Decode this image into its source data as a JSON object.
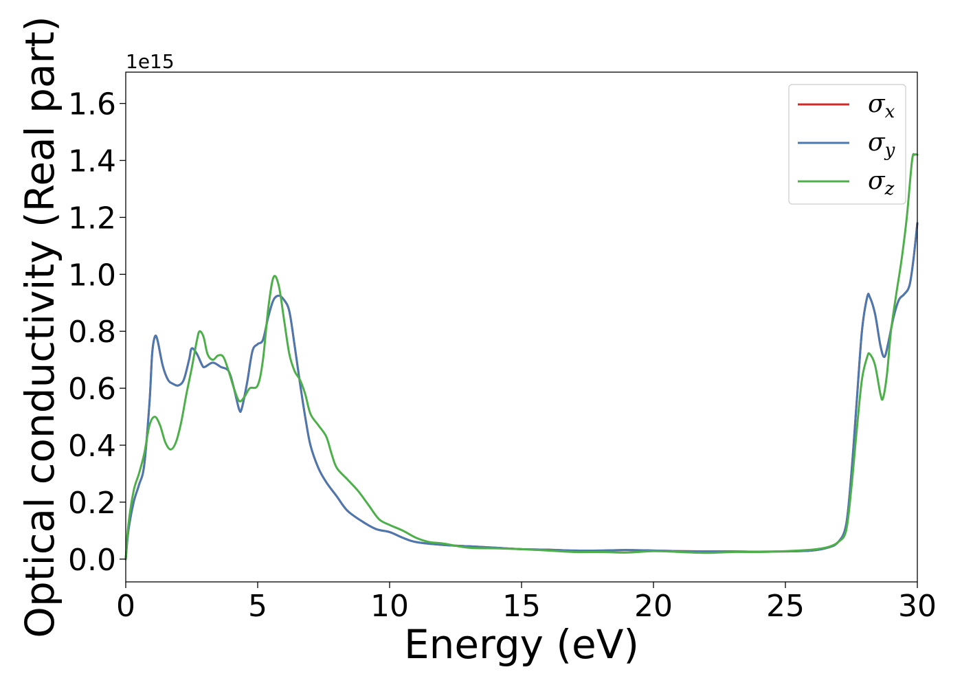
{
  "chart_data": {
    "type": "line",
    "title": "",
    "xlabel": "Energy (eV)",
    "ylabel": "Optical conductivity (Real part)",
    "y_offset_text": "1e15",
    "xlim": [
      0,
      30
    ],
    "ylim": [
      -0.08,
      1.71
    ],
    "x_ticks": [
      0,
      5,
      10,
      15,
      20,
      25,
      30
    ],
    "x_tick_labels": [
      "0",
      "5",
      "10",
      "15",
      "20",
      "25",
      "30"
    ],
    "y_ticks": [
      0.0,
      0.2,
      0.4,
      0.6,
      0.8,
      1.0,
      1.2,
      1.4,
      1.6
    ],
    "y_tick_labels": [
      "0.0",
      "0.2",
      "0.4",
      "0.6",
      "0.8",
      "1.0",
      "1.2",
      "1.4",
      "1.6"
    ],
    "grid": false,
    "legend_position": "top-right",
    "series": [
      {
        "name": "σx",
        "legend_symbol": "σ",
        "legend_subscript": "x",
        "color": "#d62728",
        "points": [
          [
            0,
            0.0
          ],
          [
            0.1,
            0.1
          ],
          [
            0.3,
            0.2
          ],
          [
            0.5,
            0.26
          ],
          [
            0.7,
            0.33
          ],
          [
            0.9,
            0.55
          ],
          [
            1.0,
            0.72
          ],
          [
            1.1,
            0.78
          ],
          [
            1.2,
            0.77
          ],
          [
            1.4,
            0.68
          ],
          [
            1.6,
            0.63
          ],
          [
            1.8,
            0.615
          ],
          [
            2.0,
            0.61
          ],
          [
            2.2,
            0.63
          ],
          [
            2.4,
            0.7
          ],
          [
            2.5,
            0.74
          ],
          [
            2.7,
            0.72
          ],
          [
            2.9,
            0.68
          ],
          [
            3.0,
            0.675
          ],
          [
            3.3,
            0.69
          ],
          [
            3.6,
            0.675
          ],
          [
            3.9,
            0.66
          ],
          [
            4.1,
            0.6
          ],
          [
            4.3,
            0.525
          ],
          [
            4.4,
            0.53
          ],
          [
            4.6,
            0.62
          ],
          [
            4.8,
            0.73
          ],
          [
            5.0,
            0.755
          ],
          [
            5.2,
            0.77
          ],
          [
            5.4,
            0.85
          ],
          [
            5.6,
            0.91
          ],
          [
            5.8,
            0.925
          ],
          [
            6.0,
            0.91
          ],
          [
            6.2,
            0.87
          ],
          [
            6.4,
            0.75
          ],
          [
            6.6,
            0.62
          ],
          [
            6.8,
            0.5
          ],
          [
            7.0,
            0.4
          ],
          [
            7.3,
            0.32
          ],
          [
            7.6,
            0.27
          ],
          [
            8.0,
            0.22
          ],
          [
            8.4,
            0.17
          ],
          [
            9.0,
            0.13
          ],
          [
            9.5,
            0.105
          ],
          [
            10.0,
            0.095
          ],
          [
            10.5,
            0.075
          ],
          [
            11.0,
            0.06
          ],
          [
            12.0,
            0.05
          ],
          [
            13.0,
            0.045
          ],
          [
            14.0,
            0.04
          ],
          [
            15.0,
            0.035
          ],
          [
            16.0,
            0.033
          ],
          [
            17.0,
            0.03
          ],
          [
            18.0,
            0.03
          ],
          [
            19.0,
            0.032
          ],
          [
            20.0,
            0.03
          ],
          [
            21.0,
            0.028
          ],
          [
            22.0,
            0.027
          ],
          [
            23.0,
            0.027
          ],
          [
            24.0,
            0.026
          ],
          [
            25.0,
            0.027
          ],
          [
            26.0,
            0.03
          ],
          [
            26.6,
            0.04
          ],
          [
            27.0,
            0.06
          ],
          [
            27.3,
            0.12
          ],
          [
            27.5,
            0.3
          ],
          [
            27.7,
            0.55
          ],
          [
            27.9,
            0.8
          ],
          [
            28.1,
            0.92
          ],
          [
            28.2,
            0.92
          ],
          [
            28.4,
            0.86
          ],
          [
            28.6,
            0.75
          ],
          [
            28.75,
            0.71
          ],
          [
            28.9,
            0.76
          ],
          [
            29.1,
            0.85
          ],
          [
            29.3,
            0.91
          ],
          [
            29.5,
            0.93
          ],
          [
            29.7,
            0.96
          ],
          [
            29.85,
            1.05
          ],
          [
            30.0,
            1.18
          ]
        ]
      },
      {
        "name": "σy",
        "legend_symbol": "σ",
        "legend_subscript": "y",
        "color": "#4a78b0",
        "points": [
          [
            0,
            0.0
          ],
          [
            0.1,
            0.1
          ],
          [
            0.3,
            0.2
          ],
          [
            0.5,
            0.26
          ],
          [
            0.7,
            0.33
          ],
          [
            0.9,
            0.55
          ],
          [
            1.0,
            0.72
          ],
          [
            1.1,
            0.78
          ],
          [
            1.2,
            0.77
          ],
          [
            1.4,
            0.68
          ],
          [
            1.6,
            0.63
          ],
          [
            1.8,
            0.615
          ],
          [
            2.0,
            0.61
          ],
          [
            2.2,
            0.63
          ],
          [
            2.4,
            0.7
          ],
          [
            2.5,
            0.74
          ],
          [
            2.7,
            0.72
          ],
          [
            2.9,
            0.68
          ],
          [
            3.0,
            0.675
          ],
          [
            3.3,
            0.69
          ],
          [
            3.6,
            0.675
          ],
          [
            3.9,
            0.66
          ],
          [
            4.1,
            0.6
          ],
          [
            4.3,
            0.525
          ],
          [
            4.4,
            0.53
          ],
          [
            4.6,
            0.62
          ],
          [
            4.8,
            0.73
          ],
          [
            5.0,
            0.755
          ],
          [
            5.2,
            0.77
          ],
          [
            5.4,
            0.85
          ],
          [
            5.6,
            0.91
          ],
          [
            5.8,
            0.925
          ],
          [
            6.0,
            0.91
          ],
          [
            6.2,
            0.87
          ],
          [
            6.4,
            0.75
          ],
          [
            6.6,
            0.62
          ],
          [
            6.8,
            0.5
          ],
          [
            7.0,
            0.4
          ],
          [
            7.3,
            0.32
          ],
          [
            7.6,
            0.27
          ],
          [
            8.0,
            0.22
          ],
          [
            8.4,
            0.17
          ],
          [
            9.0,
            0.13
          ],
          [
            9.5,
            0.105
          ],
          [
            10.0,
            0.095
          ],
          [
            10.5,
            0.075
          ],
          [
            11.0,
            0.06
          ],
          [
            12.0,
            0.05
          ],
          [
            13.0,
            0.045
          ],
          [
            14.0,
            0.04
          ],
          [
            15.0,
            0.035
          ],
          [
            16.0,
            0.033
          ],
          [
            17.0,
            0.03
          ],
          [
            18.0,
            0.03
          ],
          [
            19.0,
            0.032
          ],
          [
            20.0,
            0.03
          ],
          [
            21.0,
            0.028
          ],
          [
            22.0,
            0.027
          ],
          [
            23.0,
            0.027
          ],
          [
            24.0,
            0.026
          ],
          [
            25.0,
            0.027
          ],
          [
            26.0,
            0.03
          ],
          [
            26.6,
            0.04
          ],
          [
            27.0,
            0.06
          ],
          [
            27.3,
            0.12
          ],
          [
            27.5,
            0.3
          ],
          [
            27.7,
            0.55
          ],
          [
            27.9,
            0.8
          ],
          [
            28.1,
            0.92
          ],
          [
            28.2,
            0.92
          ],
          [
            28.4,
            0.86
          ],
          [
            28.6,
            0.75
          ],
          [
            28.75,
            0.71
          ],
          [
            28.9,
            0.76
          ],
          [
            29.1,
            0.85
          ],
          [
            29.3,
            0.91
          ],
          [
            29.5,
            0.93
          ],
          [
            29.7,
            0.96
          ],
          [
            29.85,
            1.05
          ],
          [
            30.0,
            1.18
          ]
        ]
      },
      {
        "name": "σz",
        "legend_symbol": "σ",
        "legend_subscript": "z",
        "color": "#4daf4a",
        "points": [
          [
            0,
            0.0
          ],
          [
            0.1,
            0.12
          ],
          [
            0.3,
            0.24
          ],
          [
            0.5,
            0.3
          ],
          [
            0.7,
            0.37
          ],
          [
            0.9,
            0.47
          ],
          [
            1.1,
            0.5
          ],
          [
            1.3,
            0.47
          ],
          [
            1.5,
            0.41
          ],
          [
            1.7,
            0.385
          ],
          [
            1.9,
            0.41
          ],
          [
            2.1,
            0.48
          ],
          [
            2.3,
            0.58
          ],
          [
            2.5,
            0.67
          ],
          [
            2.7,
            0.77
          ],
          [
            2.8,
            0.8
          ],
          [
            2.95,
            0.78
          ],
          [
            3.1,
            0.72
          ],
          [
            3.3,
            0.7
          ],
          [
            3.5,
            0.715
          ],
          [
            3.7,
            0.71
          ],
          [
            3.9,
            0.66
          ],
          [
            4.1,
            0.6
          ],
          [
            4.3,
            0.555
          ],
          [
            4.5,
            0.57
          ],
          [
            4.7,
            0.6
          ],
          [
            5.0,
            0.61
          ],
          [
            5.2,
            0.7
          ],
          [
            5.4,
            0.88
          ],
          [
            5.6,
            0.99
          ],
          [
            5.8,
            0.96
          ],
          [
            6.0,
            0.84
          ],
          [
            6.2,
            0.72
          ],
          [
            6.4,
            0.66
          ],
          [
            6.6,
            0.63
          ],
          [
            6.8,
            0.58
          ],
          [
            7.0,
            0.51
          ],
          [
            7.3,
            0.47
          ],
          [
            7.6,
            0.43
          ],
          [
            7.8,
            0.37
          ],
          [
            8.0,
            0.32
          ],
          [
            8.4,
            0.28
          ],
          [
            8.8,
            0.24
          ],
          [
            9.2,
            0.19
          ],
          [
            9.6,
            0.14
          ],
          [
            10.0,
            0.12
          ],
          [
            10.5,
            0.1
          ],
          [
            11.0,
            0.075
          ],
          [
            11.5,
            0.06
          ],
          [
            12.0,
            0.055
          ],
          [
            13.0,
            0.04
          ],
          [
            14.0,
            0.038
          ],
          [
            15.0,
            0.035
          ],
          [
            16.0,
            0.03
          ],
          [
            17.0,
            0.025
          ],
          [
            18.0,
            0.025
          ],
          [
            19.0,
            0.023
          ],
          [
            20.0,
            0.028
          ],
          [
            21.0,
            0.025
          ],
          [
            22.0,
            0.022
          ],
          [
            23.0,
            0.025
          ],
          [
            24.0,
            0.025
          ],
          [
            25.0,
            0.028
          ],
          [
            26.0,
            0.033
          ],
          [
            26.6,
            0.042
          ],
          [
            27.0,
            0.06
          ],
          [
            27.3,
            0.1
          ],
          [
            27.5,
            0.25
          ],
          [
            27.7,
            0.45
          ],
          [
            27.9,
            0.63
          ],
          [
            28.1,
            0.71
          ],
          [
            28.2,
            0.72
          ],
          [
            28.4,
            0.68
          ],
          [
            28.6,
            0.58
          ],
          [
            28.7,
            0.565
          ],
          [
            28.85,
            0.65
          ],
          [
            29.0,
            0.8
          ],
          [
            29.2,
            0.93
          ],
          [
            29.4,
            1.05
          ],
          [
            29.6,
            1.2
          ],
          [
            29.8,
            1.4
          ],
          [
            29.9,
            1.42
          ],
          [
            30.0,
            1.42
          ]
        ]
      }
    ]
  }
}
